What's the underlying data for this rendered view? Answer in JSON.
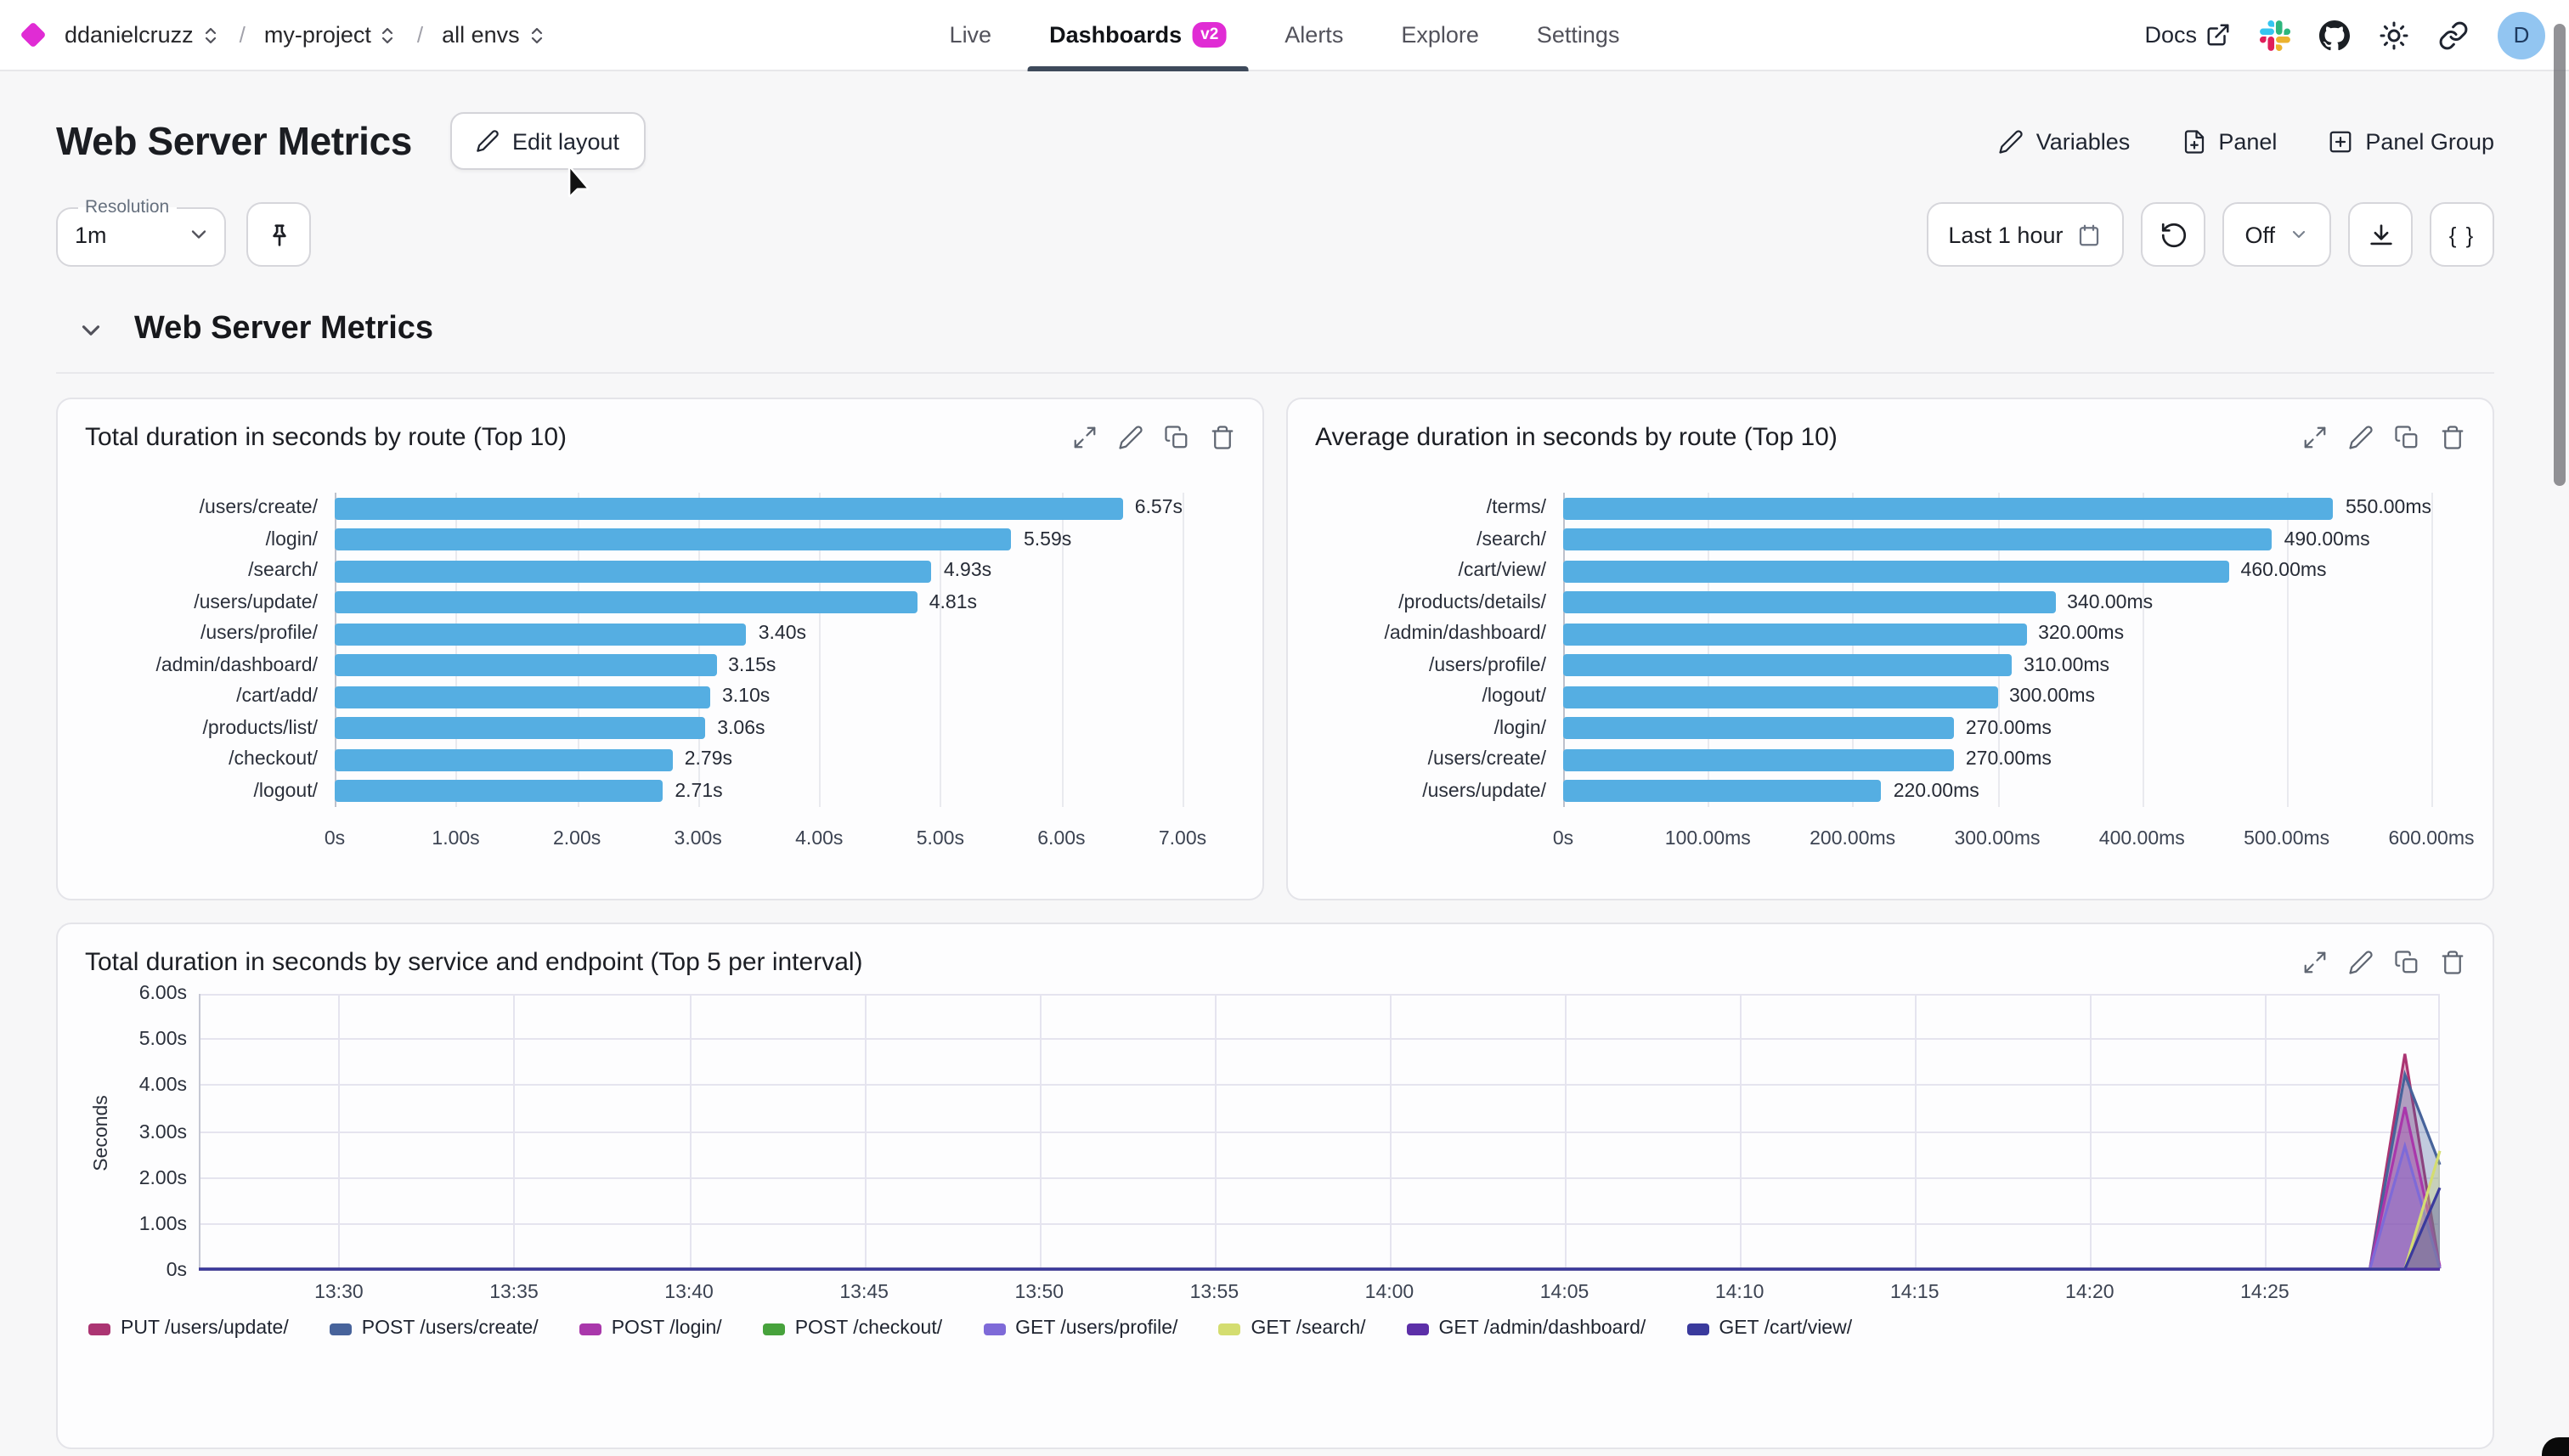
{
  "nav": {
    "breadcrumb": [
      {
        "label": "ddanielcruzz"
      },
      {
        "label": "my-project"
      },
      {
        "label": "all envs"
      }
    ],
    "tabs": [
      {
        "label": "Live",
        "active": false
      },
      {
        "label": "Dashboards",
        "badge": "v2",
        "active": true
      },
      {
        "label": "Alerts",
        "active": false
      },
      {
        "label": "Explore",
        "active": false
      },
      {
        "label": "Settings",
        "active": false
      }
    ],
    "docs_label": "Docs",
    "icons": [
      "external-link-icon",
      "slack-icon",
      "github-icon",
      "sun-icon",
      "link-icon"
    ],
    "avatar_letter": "D"
  },
  "header": {
    "title": "Web Server Metrics",
    "edit_layout_label": "Edit layout",
    "actions": [
      {
        "label": "Variables",
        "icon": "pencil-icon"
      },
      {
        "label": "Panel",
        "icon": "file-plus-icon"
      },
      {
        "label": "Panel Group",
        "icon": "square-plus-icon"
      }
    ]
  },
  "toolbar": {
    "resolution_label": "Resolution",
    "resolution_value": "1m",
    "pin_icon": "pin-icon",
    "time_range": "Last 1 hour",
    "refresh_icon": "rotate-ccw-icon",
    "auto_refresh": "Off",
    "download_icon": "download-icon",
    "code_label": "{ }"
  },
  "section": {
    "title": "Web Server Metrics"
  },
  "panels": [
    {
      "title": "Total duration in seconds by route (Top 10)"
    },
    {
      "title": "Average duration in seconds by route (Top 10)"
    },
    {
      "title": "Total duration in seconds by service and endpoint (Top 5 per interval)"
    }
  ],
  "colors": {
    "accent_magenta": "#e02cd4",
    "tab_underline": "#3e4a5b",
    "bar_blue": "#55aee2",
    "avatar_bg": "#92c5f1"
  },
  "chart_data": [
    {
      "type": "bar",
      "orientation": "horizontal",
      "title": "Total duration in seconds by route (Top 10)",
      "categories": [
        "/users/create/",
        "/login/",
        "/search/",
        "/users/update/",
        "/users/profile/",
        "/admin/dashboard/",
        "/cart/add/",
        "/products/list/",
        "/checkout/",
        "/logout/"
      ],
      "values": [
        6.57,
        5.59,
        4.93,
        4.81,
        3.4,
        3.15,
        3.1,
        3.06,
        2.79,
        2.71
      ],
      "value_labels": [
        "6.57s",
        "5.59s",
        "4.93s",
        "4.81s",
        "3.40s",
        "3.15s",
        "3.10s",
        "3.06s",
        "2.79s",
        "2.71s"
      ],
      "x_ticks": [
        "0s",
        "1.00s",
        "2.00s",
        "3.00s",
        "4.00s",
        "5.00s",
        "6.00s",
        "7.00s"
      ],
      "x_tick_values": [
        0,
        1,
        2,
        3,
        4,
        5,
        6,
        7
      ],
      "xlim": [
        0,
        7
      ],
      "bar_color": "#55aee2",
      "grid": true
    },
    {
      "type": "bar",
      "orientation": "horizontal",
      "title": "Average duration in seconds by route (Top 10)",
      "categories": [
        "/terms/",
        "/search/",
        "/cart/view/",
        "/products/details/",
        "/admin/dashboard/",
        "/users/profile/",
        "/logout/",
        "/login/",
        "/users/create/",
        "/users/update/"
      ],
      "values": [
        550,
        490,
        460,
        340,
        320,
        310,
        300,
        270,
        270,
        220
      ],
      "value_labels": [
        "550.00ms",
        "490.00ms",
        "460.00ms",
        "340.00ms",
        "320.00ms",
        "310.00ms",
        "300.00ms",
        "270.00ms",
        "270.00ms",
        "220.00ms"
      ],
      "x_ticks": [
        "0s",
        "100.00ms",
        "200.00ms",
        "300.00ms",
        "400.00ms",
        "500.00ms",
        "600.00ms"
      ],
      "x_tick_values": [
        0,
        100,
        200,
        300,
        400,
        500,
        600
      ],
      "xlim": [
        0,
        600
      ],
      "bar_color": "#55aee2",
      "grid": true
    },
    {
      "type": "area",
      "title": "Total duration in seconds by service and endpoint (Top 5 per interval)",
      "ylabel": "Seconds",
      "y_ticks": [
        "6.00s",
        "5.00s",
        "4.00s",
        "3.00s",
        "2.00s",
        "1.00s",
        "0s"
      ],
      "y_tick_values": [
        6,
        5,
        4,
        3,
        2,
        1,
        0
      ],
      "ylim": [
        0,
        6
      ],
      "x_range": [
        "13:26",
        "14:30"
      ],
      "x_ticks": [
        "13:30",
        "13:35",
        "13:40",
        "13:45",
        "13:50",
        "13:55",
        "14:00",
        "14:05",
        "14:10",
        "14:15",
        "14:20",
        "14:25"
      ],
      "grid": true,
      "legend_position": "bottom",
      "series": [
        {
          "name": "PUT /users/update/",
          "color": "#ab3472",
          "points": [
            [
              "13:26",
              0
            ],
            [
              "14:28",
              0
            ],
            [
              "14:29",
              4.7
            ],
            [
              "14:30",
              0.05
            ]
          ]
        },
        {
          "name": "POST /users/create/",
          "color": "#47639b",
          "points": [
            [
              "13:26",
              0
            ],
            [
              "14:28",
              0
            ],
            [
              "14:29",
              4.25
            ],
            [
              "14:30",
              2.3
            ]
          ]
        },
        {
          "name": "POST /login/",
          "color": "#a937ab",
          "points": [
            [
              "13:26",
              0
            ],
            [
              "14:28",
              0
            ],
            [
              "14:29",
              3.55
            ],
            [
              "14:30",
              0.1
            ]
          ]
        },
        {
          "name": "POST /checkout/",
          "color": "#47a23c",
          "points": [
            [
              "13:26",
              0
            ],
            [
              "14:30",
              0
            ]
          ]
        },
        {
          "name": "GET /users/profile/",
          "color": "#7e6ad8",
          "points": [
            [
              "13:26",
              0
            ],
            [
              "14:28",
              0
            ],
            [
              "14:29",
              2.7
            ],
            [
              "14:30",
              0.05
            ]
          ]
        },
        {
          "name": "GET /search/",
          "color": "#d4dd70",
          "points": [
            [
              "13:26",
              0
            ],
            [
              "14:29",
              0
            ],
            [
              "14:30",
              2.6
            ]
          ]
        },
        {
          "name": "GET /admin/dashboard/",
          "color": "#5c2fa8",
          "points": [
            [
              "13:26",
              0
            ],
            [
              "14:30",
              0
            ]
          ]
        },
        {
          "name": "GET /cart/view/",
          "color": "#3a3a9d",
          "points": [
            [
              "13:26",
              0
            ],
            [
              "14:29",
              0
            ],
            [
              "14:30",
              1.8
            ]
          ]
        }
      ]
    }
  ]
}
